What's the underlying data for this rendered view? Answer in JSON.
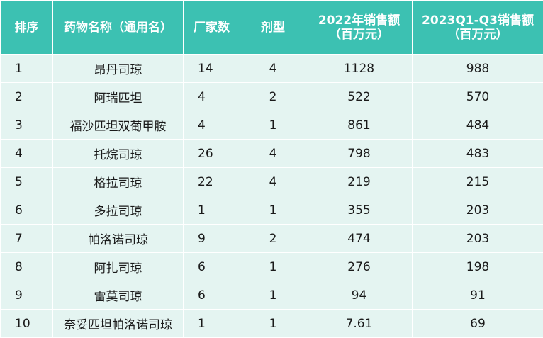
{
  "headers": {
    "rank": "排序",
    "name": "药物名称（通用名）",
    "makers": "厂家数",
    "forms": "剂型",
    "sales2022_line1": "2022年销售额",
    "sales2022_line2": "（百万元）",
    "sales2023_line1": "2023Q1-Q3销售额",
    "sales2023_line2": "（百万元）"
  },
  "rows": [
    {
      "rank": "1",
      "name": "昂丹司琼",
      "makers": "14",
      "forms": "4",
      "sales2022": "1128",
      "sales2023": "988"
    },
    {
      "rank": "2",
      "name": "阿瑞匹坦",
      "makers": "4",
      "forms": "2",
      "sales2022": "522",
      "sales2023": "570"
    },
    {
      "rank": "3",
      "name": "福沙匹坦双葡甲胺",
      "makers": "4",
      "forms": "1",
      "sales2022": "861",
      "sales2023": "484"
    },
    {
      "rank": "4",
      "name": "托烷司琼",
      "makers": "26",
      "forms": "4",
      "sales2022": "798",
      "sales2023": "483"
    },
    {
      "rank": "5",
      "name": "格拉司琼",
      "makers": "22",
      "forms": "4",
      "sales2022": "219",
      "sales2023": "215"
    },
    {
      "rank": "6",
      "name": "多拉司琼",
      "makers": "1",
      "forms": "1",
      "sales2022": "355",
      "sales2023": "203"
    },
    {
      "rank": "7",
      "name": "帕洛诺司琼",
      "makers": "9",
      "forms": "2",
      "sales2022": "474",
      "sales2023": "203"
    },
    {
      "rank": "8",
      "name": "阿扎司琼",
      "makers": "6",
      "forms": "1",
      "sales2022": "276",
      "sales2023": "198"
    },
    {
      "rank": "9",
      "name": "雷莫司琼",
      "makers": "6",
      "forms": "1",
      "sales2022": "94",
      "sales2023": "91"
    },
    {
      "rank": "10",
      "name": "奈妥匹坦帕洛诺司琼",
      "makers": "1",
      "forms": "1",
      "sales2022": "7.61",
      "sales2023": "69"
    }
  ],
  "colors": {
    "header_bg": "#3cc1b2",
    "row_bg": "#e4f4f1",
    "grid": "#ffffff"
  }
}
